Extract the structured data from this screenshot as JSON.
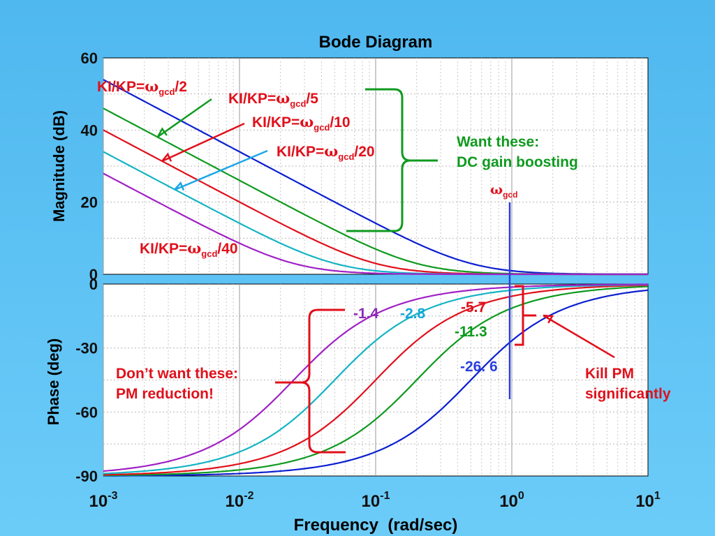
{
  "chart_data": {
    "type": "line",
    "title": "Bode Diagram",
    "xlabel": "Frequency  (rad/sec)",
    "x_scale": "log",
    "x_ticks": [
      {
        "base": "10",
        "exp": "-3"
      },
      {
        "base": "10",
        "exp": "-2"
      },
      {
        "base": "10",
        "exp": "-1"
      },
      {
        "base": "10",
        "exp": "0"
      },
      {
        "base": "10",
        "exp": "1"
      }
    ],
    "xlim": [
      0.001,
      10
    ],
    "grid": true,
    "wgcd": 1,
    "magnitude": {
      "ylabel": "Magnitude (dB)",
      "ylim": [
        0,
        60
      ],
      "yticks": [
        "0",
        "20",
        "40",
        "60"
      ],
      "ytick_values": [
        0,
        20,
        40,
        60
      ]
    },
    "phase": {
      "ylabel": "Phase (deg)",
      "ylim": [
        -90,
        0
      ],
      "yticks": [
        "0",
        "-30",
        "-60",
        "-90"
      ],
      "ytick_values": [
        0,
        -30,
        -60,
        -90
      ]
    },
    "series": [
      {
        "color": "#0b1fd0",
        "ratio": 0.5,
        "phase_at_wgcd": -26.6
      },
      {
        "color": "#0f9a1f",
        "ratio": 0.2,
        "phase_at_wgcd": -11.3
      },
      {
        "color": "#e0101b",
        "ratio": 0.1,
        "phase_at_wgcd": -5.7
      },
      {
        "color": "#14b4c4",
        "ratio": 0.05,
        "phase_at_wgcd": -2.8
      },
      {
        "color": "#a021c4",
        "ratio": 0.025,
        "phase_at_wgcd": -1.4
      }
    ]
  },
  "annotations": {
    "kikp_2": {
      "pre": "KI/KP=",
      "sym": "ω",
      "sub": "gcd",
      "post": "/2"
    },
    "kikp_5": {
      "pre": "KI/KP=",
      "sym": "ω",
      "sub": "gcd",
      "post": "/5"
    },
    "kikp_10": {
      "pre": "KI/KP=",
      "sym": "ω",
      "sub": "gcd",
      "post": "/10"
    },
    "kikp_20": {
      "pre": "KI/KP=",
      "sym": "ω",
      "sub": "gcd",
      "post": "/20"
    },
    "kikp_40": {
      "pre": "KI/KP=",
      "sym": "ω",
      "sub": "gcd",
      "post": "/40"
    },
    "want_line1": "Want these:",
    "want_line2": "DC gain boosting",
    "wgcd": {
      "sym": "ω",
      "sub": "gcd"
    },
    "dont_line1": "Don’t want these:",
    "dont_line2": "PM reduction!",
    "kill_line1": "Kill PM",
    "kill_line2": "significantly",
    "phase_labels": {
      "p14": "-1.4",
      "p28": "-2.8",
      "p57": "-5.7",
      "p113": "-11.3",
      "p266": "-26. 6"
    }
  },
  "colors": {
    "red": "#e0101b",
    "green": "#0f9a1f",
    "cyan": "#14b4c4",
    "blue": "#0b1fd0",
    "purple": "#8a2ab5",
    "background": "#5ec2f4"
  }
}
